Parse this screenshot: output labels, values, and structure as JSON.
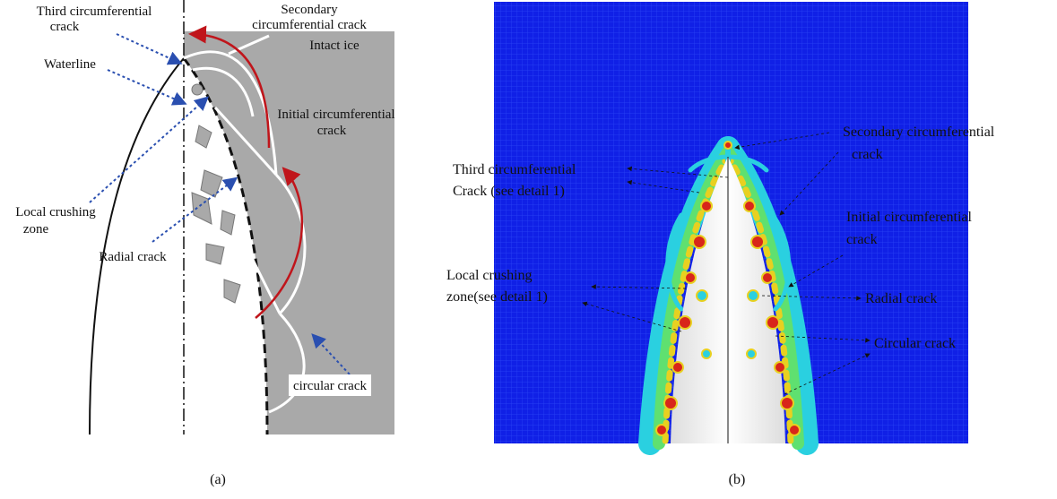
{
  "panel_a": {
    "caption": "(a)",
    "labels": {
      "third_crack": [
        "Third circumferential",
        "crack"
      ],
      "secondary_crack": [
        "Secondary",
        "circumferential crack"
      ],
      "intact_ice": [
        "Intact ice"
      ],
      "waterline": [
        "Waterline"
      ],
      "initial_crack": [
        "Initial circumferential",
        "crack"
      ],
      "local_crushing": [
        "Local crushing",
        "zone"
      ],
      "radial_crack": [
        "Radial crack"
      ],
      "circular_crack": [
        "circular crack"
      ]
    }
  },
  "panel_b": {
    "caption": "(b)",
    "labels": {
      "secondary_crack": [
        "Secondary circumferential",
        "crack"
      ],
      "third_crack": [
        "Third circumferential",
        "Crack (see detail 1)"
      ],
      "initial_crack": [
        "Initial circumferential",
        "crack"
      ],
      "local_crushing": [
        "Local crushing",
        "zone(see detail 1)"
      ],
      "radial_crack": [
        "Radial crack"
      ],
      "circular_crack": [
        "Circular crack"
      ]
    }
  }
}
